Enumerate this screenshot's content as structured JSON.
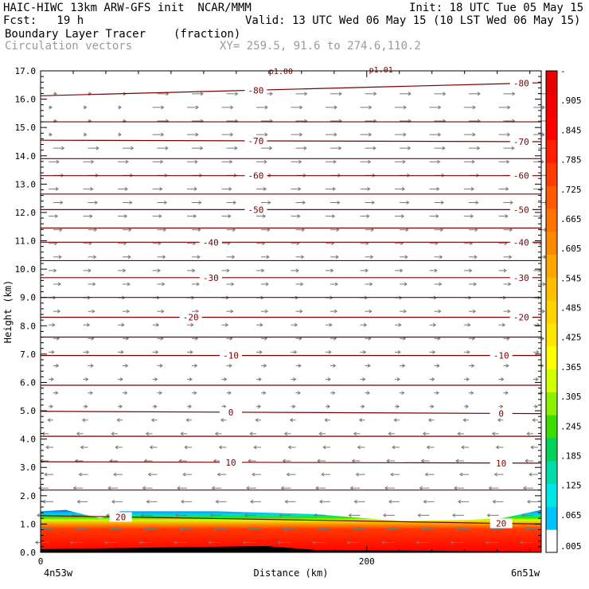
{
  "header": {
    "line1_left": "HAIC-HIWC 13km ARW-GFS init  NCAR/MMM",
    "line1_right": "Init: 18 UTC Tue 05 May 15",
    "line2_left": "Fcst:   19 h",
    "line2_right": "Valid: 13 UTC Wed 06 May 15 (10 LST Wed 06 May 15)",
    "line3_left": "Boundary Layer Tracer",
    "line3_units": "(fraction)",
    "line4_left": "Circulation vectors",
    "line4_coords": "XY= 259.5, 91.6 to 274.6,110.2"
  },
  "chart_data": {
    "type": "cross-section",
    "xlabel": "Distance (km)",
    "ylabel": "Height (km)",
    "xlim": [
      0,
      307
    ],
    "ylim": [
      0,
      17
    ],
    "x_ticks": [
      {
        "v": 0,
        "label": "0"
      },
      {
        "v": 200,
        "label": "200"
      }
    ],
    "y_ticks": [
      "0.0",
      "1.0",
      "2.0",
      "3.0",
      "4.0",
      "5.0",
      "6.0",
      "7.0",
      "8.0",
      "9.0",
      "10.0",
      "11.0",
      "12.0",
      "13.0",
      "14.0",
      "15.0",
      "16.0",
      "17.0"
    ],
    "x_end_labels": {
      "left": "4n53w",
      "right": "6n51w"
    },
    "top_labels": [
      "p1.00",
      "p1.01"
    ],
    "isotherms": [
      {
        "y0": 16.12,
        "y1": 16.58,
        "label": "-80",
        "lx": [
          0.43,
          0.96
        ]
      },
      {
        "y0": 15.2,
        "y1": 15.2
      },
      {
        "y0": 14.55,
        "y1": 14.5,
        "label": "-70",
        "lx": [
          0.43,
          0.96
        ]
      },
      {
        "y0": 13.9,
        "y1": 13.9
      },
      {
        "y0": 13.3,
        "y1": 13.3,
        "label": "-60",
        "lx": [
          0.43,
          0.96
        ]
      },
      {
        "y0": 12.65,
        "y1": 12.65
      },
      {
        "y0": 12.1,
        "y1": 12.1,
        "label": "-50",
        "lx": [
          0.43,
          0.96
        ]
      },
      {
        "y0": 11.45,
        "y1": 11.45
      },
      {
        "y0": 10.95,
        "y1": 10.95,
        "label": "-40",
        "lx": [
          0.34,
          0.96
        ]
      },
      {
        "y0": 10.3,
        "y1": 10.3
      },
      {
        "y0": 9.7,
        "y1": 9.7,
        "label": "-30",
        "lx": [
          0.34,
          0.96
        ]
      },
      {
        "y0": 9.0,
        "y1": 9.0
      },
      {
        "y0": 8.3,
        "y1": 8.3,
        "label": "-20",
        "lx": [
          0.3,
          0.96
        ]
      },
      {
        "y0": 7.6,
        "y1": 7.6
      },
      {
        "y0": 6.95,
        "y1": 6.95,
        "label": "-10",
        "lx": [
          0.38,
          0.92
        ]
      },
      {
        "y0": 5.9,
        "y1": 5.9
      },
      {
        "y0": 4.98,
        "y1": 4.9,
        "label": "0",
        "lx": [
          0.38,
          0.92
        ]
      },
      {
        "y0": 4.1,
        "y1": 4.1
      },
      {
        "y0": 3.2,
        "y1": 3.15,
        "label": "10",
        "lx": [
          0.38,
          0.92
        ]
      },
      {
        "y0": 2.2,
        "y1": 2.2
      },
      {
        "y0": 1.3,
        "y1": 1.0,
        "label": "20",
        "lx": [
          0.16,
          0.92
        ]
      }
    ],
    "tracer_layer": {
      "top_km": [
        1.45,
        1.5,
        1.2,
        1.45,
        1.45,
        1.4,
        1.35,
        1.1,
        1.15,
        1.2,
        1.5
      ],
      "top_x": [
        0,
        0.05,
        0.12,
        0.16,
        0.35,
        0.45,
        0.55,
        0.72,
        0.85,
        0.92,
        1.0
      ]
    },
    "colorbar": {
      "colors": [
        "#ffffff",
        "#00c2ff",
        "#00e6e6",
        "#00dcaa",
        "#00d25a",
        "#3cdc00",
        "#8cf000",
        "#d2ff00",
        "#ffff00",
        "#ffe600",
        "#ffd200",
        "#ffbe00",
        "#ffa500",
        "#ff8c00",
        "#ff7300",
        "#ff5a00",
        "#ff3c00",
        "#ff1e00",
        "#ff0000",
        "#f00000",
        "#e60000"
      ],
      "labels": [
        "-",
        ".905",
        ".845",
        ".785",
        ".725",
        ".665",
        ".605",
        ".545",
        ".485",
        ".425",
        ".365",
        ".305",
        ".245",
        ".185",
        ".125",
        ".065",
        ".005"
      ]
    }
  }
}
